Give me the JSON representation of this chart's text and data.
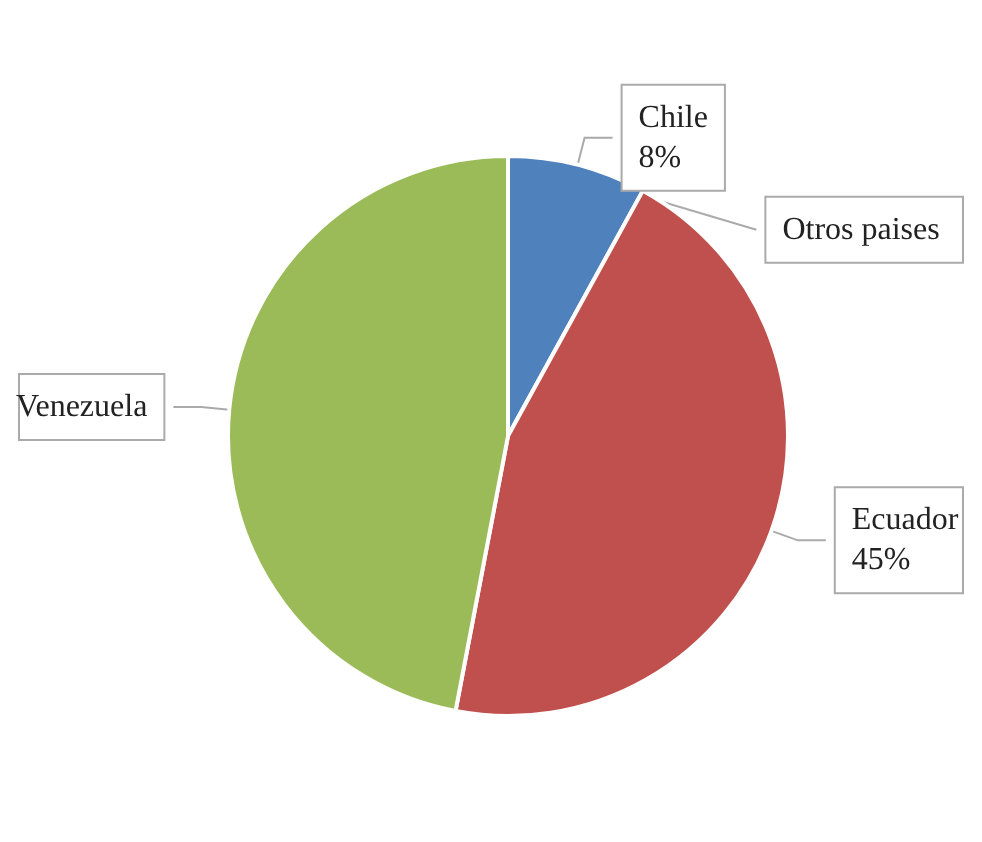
{
  "chart_data": {
    "type": "pie",
    "categories": [
      "Chile",
      "Ecuador",
      "Venezuela",
      "Otros paises"
    ],
    "values": [
      8,
      45,
      47,
      0
    ],
    "value_labels": [
      "8%",
      "45%",
      null,
      null
    ],
    "colors": [
      "#4f81bd",
      "#c0504d",
      "#9bbb59",
      "#8064a2"
    ],
    "legend": false
  }
}
